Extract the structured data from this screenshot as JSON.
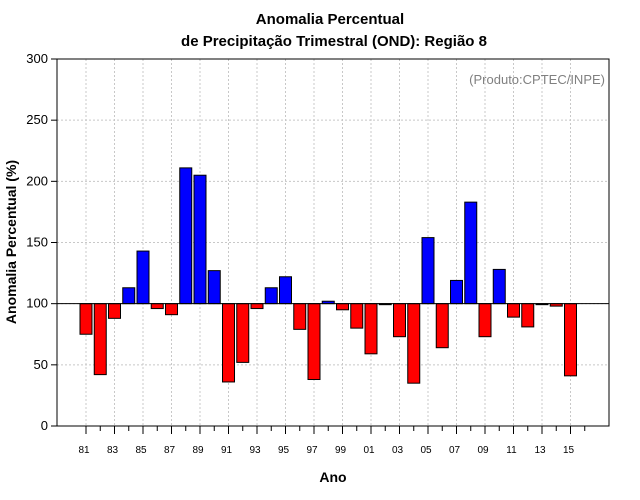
{
  "chart_data": {
    "type": "bar",
    "title": "Anomalia Percentual",
    "subtitle": "de Precipitação Trimestral (OND): Região 8",
    "xlabel": "Ano",
    "ylabel": "Anomalia Percentual (%)",
    "credit": "(Produto:CPTEC/INPE)",
    "baseline": 100,
    "ylim": [
      0,
      300
    ],
    "yticks": [
      "0",
      "50",
      "100",
      "150",
      "200",
      "250",
      "300"
    ],
    "grid": true,
    "categories": [
      "81",
      "82",
      "83",
      "84",
      "85",
      "86",
      "87",
      "88",
      "89",
      "90",
      "91",
      "92",
      "93",
      "94",
      "95",
      "96",
      "97",
      "98",
      "99",
      "00",
      "01",
      "02",
      "03",
      "04",
      "05",
      "06",
      "07",
      "08",
      "09",
      "10",
      "11",
      "12",
      "13",
      "14",
      "15"
    ],
    "xtick_labels": [
      "81",
      "83",
      "85",
      "87",
      "89",
      "91",
      "93",
      "95",
      "97",
      "99",
      "01",
      "03",
      "05",
      "07",
      "09",
      "11",
      "13",
      "15"
    ],
    "values": [
      75,
      42,
      88,
      113,
      143,
      96,
      91,
      211,
      205,
      127,
      36,
      52,
      96,
      113,
      122,
      79,
      38,
      102,
      95,
      80,
      59,
      100,
      73,
      35,
      154,
      64,
      119,
      183,
      73,
      128,
      89,
      81,
      100,
      98,
      41
    ],
    "colors": {
      "above": "#0000ff",
      "below": "#ff0000"
    }
  }
}
